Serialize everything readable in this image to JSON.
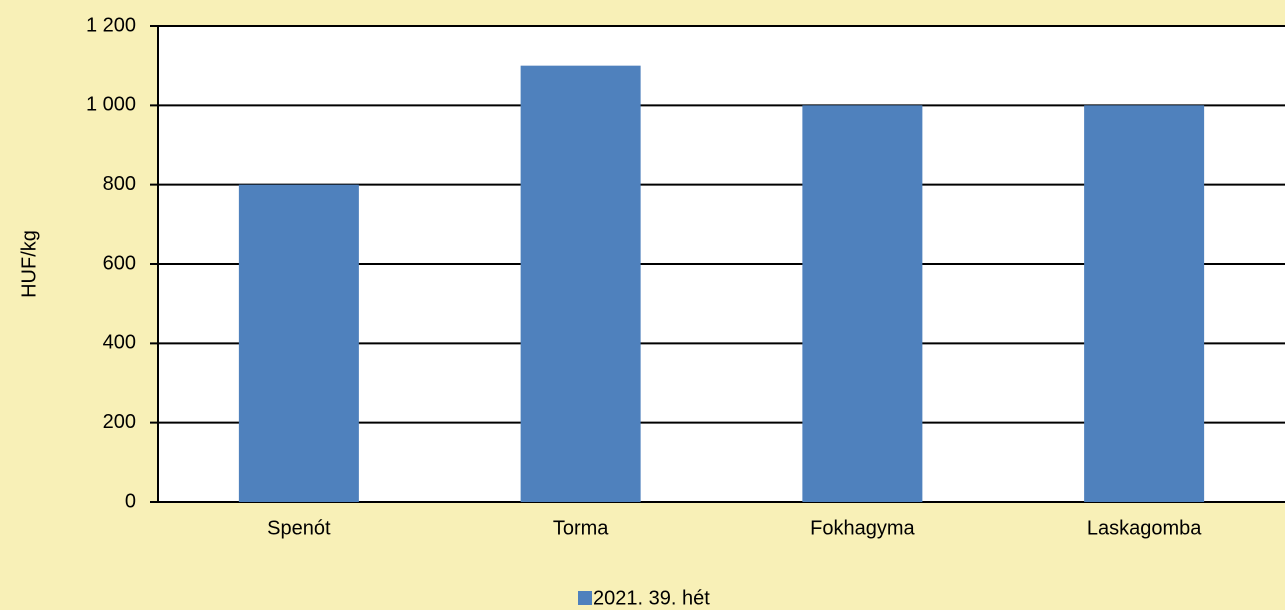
{
  "chart_data": {
    "type": "bar",
    "y_label": "HUF/kg",
    "categories": [
      "Spenót",
      "Torma",
      "Fokhagyma",
      "Laskagomba"
    ],
    "series": [
      {
        "name": "2021. 39. hét",
        "color": "#4f81bd",
        "values": [
          800,
          1100,
          1000,
          1000
        ]
      }
    ],
    "ylim": [
      0,
      1200
    ],
    "yticks": [
      0,
      200,
      400,
      600,
      800,
      {
        "value": 1000,
        "label": "1 000"
      },
      {
        "value": 1200,
        "label": "1 200"
      }
    ],
    "grid": true,
    "legend": "bottom"
  }
}
